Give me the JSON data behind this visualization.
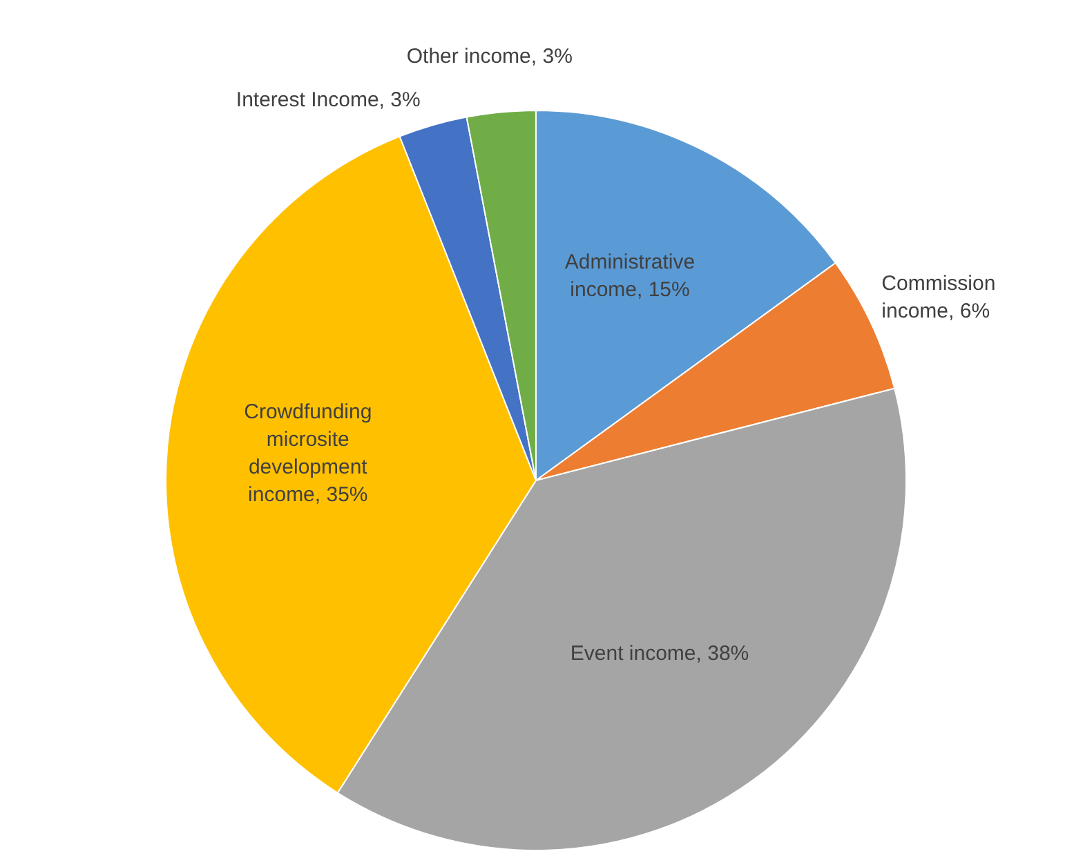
{
  "chart_data": {
    "type": "pie",
    "categories": [
      "Administrative income",
      "Commission income",
      "Event income",
      "Crowdfunding microsite development income",
      "Interest Income",
      "Other income"
    ],
    "values": [
      15,
      6,
      38,
      35,
      3,
      3
    ],
    "value_labels": [
      "15%",
      "6%",
      "38%",
      "35%",
      "3%",
      "3%"
    ],
    "colors": [
      "#5b9bd5",
      "#ed7d31",
      "#a5a5a5",
      "#ffc000",
      "#4472c4",
      "#70ad47"
    ],
    "legend": false
  }
}
